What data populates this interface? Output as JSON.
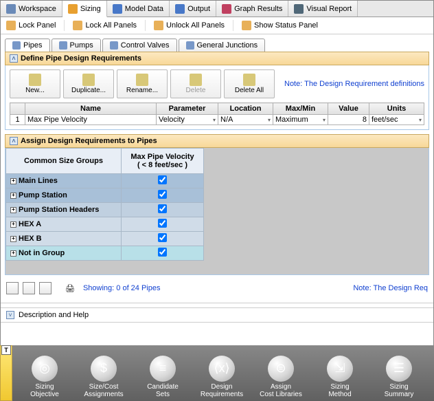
{
  "top_tabs": [
    {
      "label": "Workspace",
      "icon": "#6a8ab8"
    },
    {
      "label": "Sizing",
      "icon": "#e8a030",
      "active": true
    },
    {
      "label": "Model Data",
      "icon": "#4878c8"
    },
    {
      "label": "Output",
      "icon": "#4878c8"
    },
    {
      "label": "Graph Results",
      "icon": "#c04060"
    },
    {
      "label": "Visual Report",
      "icon": "#506878"
    }
  ],
  "lock_bar": [
    {
      "label": "Lock Panel"
    },
    {
      "label": "Lock All Panels"
    },
    {
      "label": "Unlock All Panels"
    },
    {
      "label": "Show Status Panel"
    }
  ],
  "sub_tabs": [
    {
      "label": "Pipes",
      "active": true
    },
    {
      "label": "Pumps"
    },
    {
      "label": "Control Valves"
    },
    {
      "label": "General Junctions"
    }
  ],
  "panel1_title": "Define Pipe Design Requirements",
  "tool_buttons": [
    {
      "label": "New...",
      "disabled": false
    },
    {
      "label": "Duplicate...",
      "disabled": false
    },
    {
      "label": "Rename...",
      "disabled": false
    },
    {
      "label": "Delete",
      "disabled": true
    },
    {
      "label": "Delete All",
      "disabled": false
    }
  ],
  "note1": "Note: The Design Requirement definitions on t",
  "grid_headers": [
    "",
    "Name",
    "Parameter",
    "Location",
    "Max/Min",
    "Value",
    "Units"
  ],
  "grid_row": {
    "num": "1",
    "name": "Max Pipe Velocity",
    "parameter": "Velocity",
    "location": "N/A",
    "maxmin": "Maximum",
    "value": "8",
    "units": "feet/sec"
  },
  "panel2_title": "Assign Design Requirements to Pipes",
  "assign_headers": {
    "groups": "Common Size Groups",
    "req_line1": "Max Pipe Velocity",
    "req_line2": "( < 8 feet/sec )"
  },
  "assign_rows": [
    {
      "label": "Main Lines",
      "cls": "row-blue1",
      "checked": true
    },
    {
      "label": "Pump Station",
      "cls": "row-blue1",
      "checked": true
    },
    {
      "label": "Pump Station Headers",
      "cls": "row-blue2",
      "checked": true
    },
    {
      "label": "HEX A",
      "cls": "row-blue3",
      "checked": true
    },
    {
      "label": "HEX B",
      "cls": "row-blue3",
      "checked": true
    },
    {
      "label": "Not in Group",
      "cls": "row-cyan",
      "checked": true
    }
  ],
  "showing_text": "Showing: 0 of 24 Pipes",
  "note2": "Note: The Design Req",
  "desc_label": "Description and Help",
  "bottom_nav": [
    {
      "label": "Sizing\nObjective",
      "glyph": "◎"
    },
    {
      "label": "Size/Cost\nAssignments",
      "glyph": "$"
    },
    {
      "label": "Candidate\nSets",
      "glyph": "≡"
    },
    {
      "label": "Design\nRequirements",
      "glyph": "⟨x⟩"
    },
    {
      "label": "Assign\nCost Libraries",
      "glyph": "⊜"
    },
    {
      "label": "Sizing\nMethod",
      "glyph": "⇲"
    },
    {
      "label": "Sizing\nSummary",
      "glyph": "☰"
    }
  ]
}
